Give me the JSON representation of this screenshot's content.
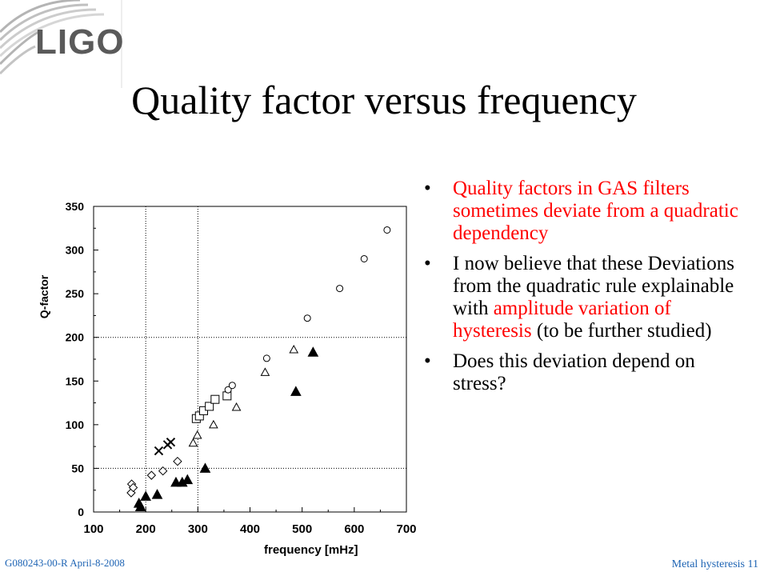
{
  "logo": {
    "text": "LIGO"
  },
  "title": "Quality factor versus frequency",
  "bullets": [
    {
      "parts": [
        {
          "text": "Quality factors in GAS filters sometimes deviate from a quadratic dependency",
          "red": true
        }
      ]
    },
    {
      "parts": [
        {
          "text": "I now believe that these Deviations from the quadratic rule explainable with ",
          "red": false
        },
        {
          "text": "amplitude variation of hysteresis",
          "red": true
        },
        {
          "text": " (to be further studied)",
          "red": false
        }
      ]
    },
    {
      "parts": [
        {
          "text": "Does this deviation depend on stress?",
          "red": false
        }
      ]
    }
  ],
  "footer": {
    "left": "G080243-00-R  April-8-2008",
    "right": "Metal hysteresis 11"
  },
  "chart_data": {
    "type": "scatter",
    "xlabel": "frequency [mHz]",
    "ylabel": "Q-factor",
    "xlim": [
      100,
      700
    ],
    "ylim": [
      0,
      350
    ],
    "xticks": [
      "100",
      "200",
      "300",
      "400",
      "500",
      "600",
      "700"
    ],
    "yticks": [
      "0",
      "50",
      "100",
      "150",
      "200",
      "250",
      "300",
      "350"
    ],
    "ref_lines": {
      "x": [
        200,
        300
      ],
      "y": [
        50,
        200
      ]
    },
    "series": [
      {
        "marker": "diamond",
        "points": [
          [
            173,
            32
          ],
          [
            172,
            22
          ],
          [
            176,
            28
          ],
          [
            211,
            42
          ],
          [
            233,
            47
          ],
          [
            261,
            58
          ]
        ]
      },
      {
        "marker": "filled-triangle",
        "points": [
          [
            187,
            10
          ],
          [
            190,
            6
          ],
          [
            200,
            18
          ],
          [
            222,
            20
          ],
          [
            258,
            34
          ],
          [
            270,
            34
          ],
          [
            280,
            37
          ],
          [
            314,
            50
          ],
          [
            488,
            138
          ],
          [
            521,
            183
          ]
        ]
      },
      {
        "marker": "triangle",
        "points": [
          [
            291,
            79
          ],
          [
            299,
            88
          ],
          [
            330,
            100
          ],
          [
            374,
            120
          ],
          [
            429,
            160
          ],
          [
            484,
            186
          ]
        ]
      },
      {
        "marker": "square",
        "points": [
          [
            297,
            107
          ],
          [
            303,
            110
          ],
          [
            311,
            116
          ],
          [
            322,
            121
          ],
          [
            333,
            129
          ],
          [
            356,
            133
          ]
        ]
      },
      {
        "marker": "circle",
        "points": [
          [
            358,
            140
          ],
          [
            366,
            145
          ],
          [
            432,
            176
          ],
          [
            510,
            222
          ],
          [
            572,
            256
          ],
          [
            619,
            290
          ],
          [
            663,
            323
          ]
        ]
      },
      {
        "marker": "cross",
        "points": [
          [
            225,
            70
          ],
          [
            242,
            77
          ],
          [
            248,
            80
          ]
        ]
      }
    ]
  }
}
